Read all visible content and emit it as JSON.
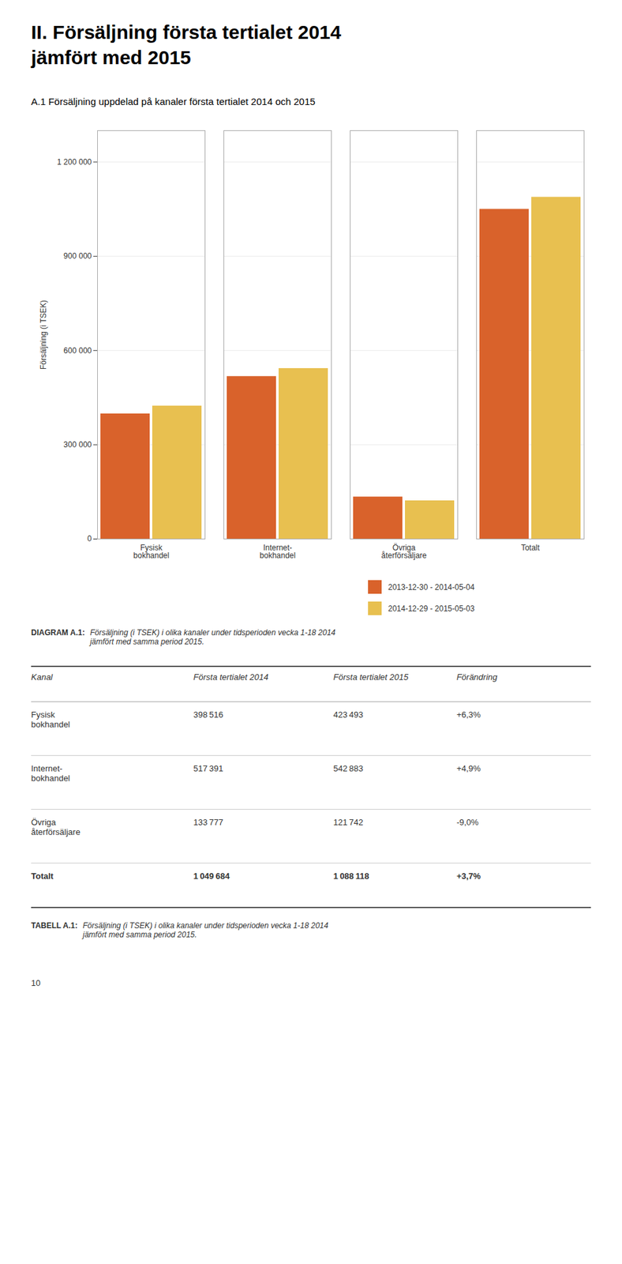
{
  "chart_data": {
    "type": "bar",
    "title": "II. Försäljning första tertialet 2014\njämfört med 2015",
    "subtitle": "A.1 Försäljning uppdelad på kanaler första tertialet 2014 och 2015",
    "ylabel": "Försäljning (i TSEK)",
    "categories": [
      "Fysisk\nbokhandel",
      "Internet-\nbokhandel",
      "Övriga\nåterförsäljare",
      "Totalt"
    ],
    "series": [
      {
        "name": "2013-12-30 - 2014-05-04",
        "color": "#D9622B",
        "values": [
          398516,
          517391,
          133777,
          1049684
        ]
      },
      {
        "name": "2014-12-29 - 2015-05-03",
        "color": "#E8C050",
        "values": [
          423493,
          542883,
          121742,
          1088118
        ]
      }
    ],
    "ylim": [
      0,
      1300000
    ],
    "yticks": [
      0,
      {
        "value": 300000,
        "label": "300 000"
      },
      {
        "value": 600000,
        "label": "600 000"
      },
      {
        "value": 900000,
        "label": "900 000"
      },
      {
        "value": 1200000,
        "label": "1 200 000"
      }
    ],
    "grid": true,
    "legend": "bottom",
    "caption": [
      "DIAGRAM A.1:",
      "Försäljning (i TSEK) i olika kanaler under tidsperioden vecka 1-18 2014\njämfört med samma period 2015."
    ],
    "table": {
      "headers": [
        "Kanal",
        "Första tertialet 2014",
        "Första tertialet 2015",
        "Förändring"
      ],
      "rows": [
        [
          "Fysisk\nbokhandel",
          "398 516",
          "423 493",
          "+6,3%"
        ],
        [
          "Internet-\nbokhandel",
          "517 391",
          "542 883",
          "+4,9%"
        ],
        [
          "Övriga\nåterförsäljare",
          "133 777",
          "121 742",
          "-9,0%"
        ],
        [
          "Totalt",
          "1 049 684",
          "1 088 118",
          "+3,7%"
        ]
      ],
      "caption": [
        "TABELL A.1:",
        "Försäljning (i TSEK) i olika kanaler under tidsperioden vecka 1-18 2014\njämfört med samma period 2015."
      ]
    },
    "page_number": "10"
  }
}
